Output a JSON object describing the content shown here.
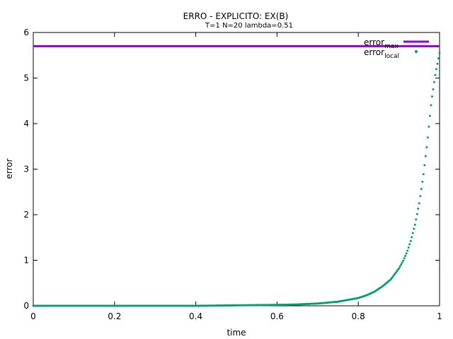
{
  "chart_data": {
    "type": "scatter",
    "title": "ERRO - EXPLICITO: EX(B)",
    "subtitle": "T=1 N=20 lambda=0.51",
    "xlabel": "time",
    "ylabel": "error",
    "xlim": [
      0,
      1
    ],
    "ylim": [
      0,
      6
    ],
    "x_ticks": [
      "0",
      "0.2",
      "0.4",
      "0.6",
      "0.8",
      "1"
    ],
    "y_ticks": [
      "0",
      "1",
      "2",
      "3",
      "4",
      "5",
      "6"
    ],
    "grid": false,
    "legend_position": "top-right",
    "series": [
      {
        "name": "error",
        "name_sub": "max",
        "kind": "line",
        "color": "#9400d3",
        "x": [
          0,
          1
        ],
        "values": [
          5.7,
          5.7
        ]
      },
      {
        "name": "error",
        "name_sub": "local",
        "kind": "points",
        "color": "#009e73",
        "x": [
          0,
          0.1,
          0.2,
          0.3,
          0.4,
          0.5,
          0.6,
          0.65,
          0.7,
          0.75,
          0.8,
          0.82,
          0.84,
          0.86,
          0.88,
          0.9,
          0.91,
          0.92,
          0.93,
          0.94,
          0.95,
          0.96,
          0.97,
          0.98,
          0.99,
          1.0
        ],
        "values": [
          0,
          0,
          0,
          0,
          0,
          0.01,
          0.02,
          0.03,
          0.05,
          0.09,
          0.17,
          0.23,
          0.31,
          0.43,
          0.58,
          0.82,
          0.98,
          1.18,
          1.45,
          1.8,
          2.25,
          2.85,
          3.6,
          4.5,
          5.1,
          5.55
        ]
      }
    ]
  }
}
